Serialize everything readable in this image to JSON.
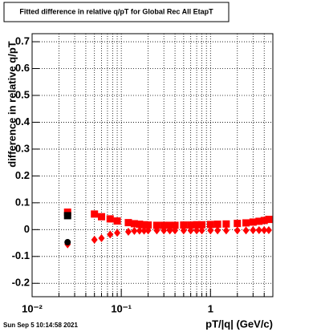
{
  "chart_data": {
    "type": "scatter",
    "title": "Fitted difference in relative q/pT for Global Rec All EtapT",
    "xlabel": "pT/|q| (GeV/c)",
    "ylabel": "difference in relative q/pT",
    "timestamp": "Sun Sep  5 10:14:58 2021",
    "xlog": true,
    "grid": true,
    "xlim": [
      0.01,
      5
    ],
    "ylim": [
      -0.25,
      0.73
    ],
    "xticks": [
      {
        "value": 0.01,
        "label": "10⁻²"
      },
      {
        "value": 0.1,
        "label": "10⁻¹"
      },
      1
    ],
    "xminorticks": [
      0.02,
      0.03,
      0.04,
      0.05,
      0.06,
      0.07,
      0.08,
      0.09,
      0.2,
      0.3,
      0.4,
      0.5,
      0.6,
      0.7,
      0.8,
      0.9,
      2,
      3,
      4,
      5
    ],
    "yticks": [
      -0.2,
      -0.1,
      0,
      0.1,
      0.2,
      0.3,
      0.4,
      0.5,
      0.6,
      0.7
    ],
    "series": [
      {
        "color": "#ff0000",
        "marker": "square",
        "x": [
          0.025,
          0.05,
          0.06,
          0.075,
          0.09,
          0.12,
          0.14,
          0.16,
          0.18,
          0.2,
          0.25,
          0.3,
          0.35,
          0.4,
          0.5,
          0.6,
          0.7,
          0.8,
          1,
          1.2,
          1.5,
          2,
          2.5,
          3,
          3.5,
          4,
          4.5
        ],
        "values": [
          0.065,
          0.058,
          0.048,
          0.04,
          0.032,
          0.026,
          0.022,
          0.02,
          0.018,
          0.017,
          0.016,
          0.016,
          0.016,
          0.016,
          0.017,
          0.017,
          0.018,
          0.018,
          0.019,
          0.02,
          0.021,
          0.023,
          0.025,
          0.028,
          0.031,
          0.034,
          0.038
        ]
      },
      {
        "color": "#ff0000",
        "marker": "diamond",
        "x": [
          0.025,
          0.05,
          0.06,
          0.075,
          0.09,
          0.12,
          0.14,
          0.16,
          0.18,
          0.2,
          0.25,
          0.3,
          0.35,
          0.4,
          0.5,
          0.6,
          0.7,
          0.8,
          1,
          1.2,
          1.5,
          2,
          2.5,
          3,
          3.5,
          4,
          4.5
        ],
        "values": [
          -0.055,
          -0.038,
          -0.032,
          -0.018,
          -0.012,
          -0.008,
          -0.005,
          -0.004,
          -0.004,
          -0.003,
          -0.003,
          -0.003,
          -0.003,
          -0.003,
          -0.003,
          -0.003,
          -0.003,
          -0.003,
          -0.003,
          -0.003,
          -0.003,
          -0.003,
          -0.003,
          -0.002,
          -0.002,
          -0.002,
          -0.002
        ]
      },
      {
        "color": "#000000",
        "marker": "square",
        "x": [
          0.025
        ],
        "values": [
          0.052
        ]
      },
      {
        "color": "#000000",
        "marker": "circle",
        "x": [
          0.025
        ],
        "values": [
          -0.047
        ]
      }
    ]
  }
}
